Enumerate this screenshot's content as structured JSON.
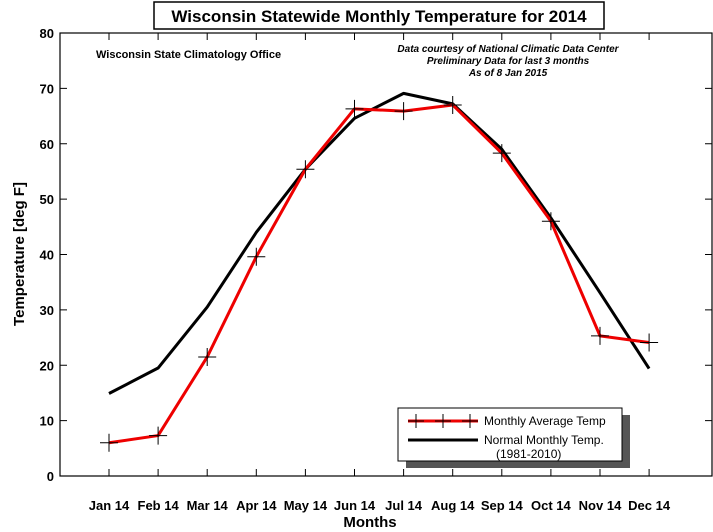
{
  "chart_data": {
    "type": "line",
    "title": "Wisconsin Statewide Monthly Temperature for 2014",
    "annotation_left": "Wisconsin State Climatology Office",
    "annotation_right": [
      "Data courtesy of National Climatic Data Center",
      "Preliminary Data for last 3 months",
      "As of 8 Jan 2015"
    ],
    "xlabel": "Months",
    "ylabel": "Temperature [deg F]",
    "categories": [
      "Jan 14",
      "Feb 14",
      "Mar 14",
      "Apr 14",
      "May 14",
      "Jun 14",
      "Jul 14",
      "Aug 14",
      "Sep 14",
      "Oct 14",
      "Nov 14",
      "Dec 14"
    ],
    "ylim": [
      0,
      80
    ],
    "yticks": [
      0,
      10,
      20,
      30,
      40,
      50,
      60,
      70,
      80
    ],
    "legend_position": "bottom-right",
    "series": [
      {
        "name": "Monthly Average Temp",
        "color": "#ee0000",
        "marker": "plus",
        "values": [
          6.0,
          7.3,
          21.5,
          39.6,
          55.4,
          66.3,
          65.9,
          67.0,
          58.3,
          46.0,
          25.3,
          24.1
        ]
      },
      {
        "name": "Normal Monthly Temp.",
        "name_line2": "(1981-2010)",
        "color": "#000000",
        "marker": "none",
        "values": [
          14.9,
          19.5,
          30.5,
          44.0,
          55.4,
          64.6,
          69.1,
          67.2,
          59.0,
          46.6,
          33.1,
          19.4
        ]
      }
    ]
  }
}
